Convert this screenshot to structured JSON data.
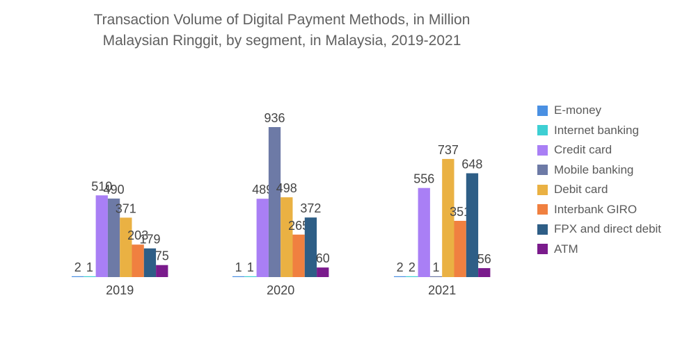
{
  "chart_data": {
    "type": "bar",
    "title_lines": [
      "Transaction Volume of Digital Payment Methods, in Million",
      "Malaysian Ringgit, by segment, in Malaysia, 2019-2021"
    ],
    "categories": [
      "2019",
      "2020",
      "2021"
    ],
    "series": [
      {
        "name": "E-money",
        "color": "#4a90e2",
        "values": [
          2,
          1,
          2
        ]
      },
      {
        "name": "Internet banking",
        "color": "#3ecfd3",
        "values": [
          1,
          1,
          2
        ]
      },
      {
        "name": "Credit card",
        "color": "#a97ff5",
        "values": [
          510,
          489,
          556
        ]
      },
      {
        "name": "Mobile banking",
        "color": "#6d7aa6",
        "values": [
          490,
          936,
          1
        ]
      },
      {
        "name": "Debit card",
        "color": "#eab143",
        "values": [
          371,
          498,
          737
        ]
      },
      {
        "name": "Interbank GIRO",
        "color": "#f08040",
        "values": [
          203,
          265,
          351
        ]
      },
      {
        "name": "FPX and direct debit",
        "color": "#2e5e86",
        "values": [
          179,
          372,
          648
        ]
      },
      {
        "name": "ATM",
        "color": "#7a1b8c",
        "values": [
          75,
          60,
          56
        ]
      }
    ],
    "ylim": [
      0,
      936
    ],
    "xlabel": "",
    "ylabel": "",
    "legend_position": "right",
    "grid": false
  }
}
